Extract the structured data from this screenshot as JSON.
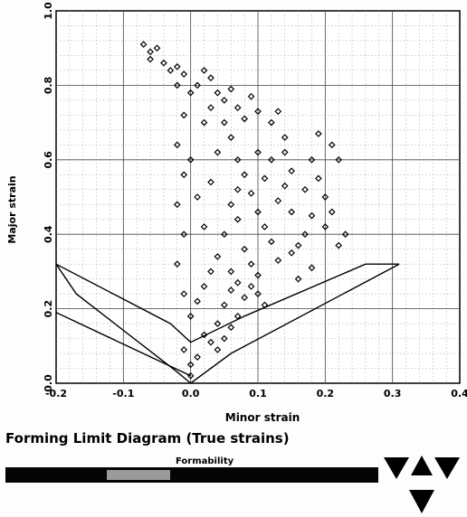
{
  "chart_data": {
    "type": "scatter",
    "title": "Forming Limit Diagram (True strains)",
    "xlabel": "Minor strain",
    "ylabel": "Major strain",
    "xlim": [
      -0.2,
      0.4
    ],
    "ylim": [
      0.0,
      1.0
    ],
    "x_ticks": [
      "-0.2",
      "-0.1",
      "0.0",
      "0.1",
      "0.2",
      "0.3",
      "0.4"
    ],
    "y_ticks": [
      "0.0",
      "0.2",
      "0.4",
      "0.6",
      "0.8",
      "1.0"
    ],
    "grid": true,
    "marker": "open-diamond",
    "color": "#000000",
    "series": [
      {
        "values": [
          [
            -0.07,
            0.91
          ],
          [
            -0.06,
            0.89
          ],
          [
            -0.05,
            0.9
          ],
          [
            -0.06,
            0.87
          ],
          [
            -0.04,
            0.86
          ],
          [
            -0.03,
            0.84
          ],
          [
            -0.02,
            0.85
          ],
          [
            -0.02,
            0.8
          ],
          [
            -0.01,
            0.83
          ],
          [
            0.0,
            0.78
          ],
          [
            0.01,
            0.8
          ],
          [
            0.02,
            0.84
          ],
          [
            0.03,
            0.82
          ],
          [
            0.04,
            0.78
          ],
          [
            0.05,
            0.76
          ],
          [
            0.06,
            0.79
          ],
          [
            0.07,
            0.74
          ],
          [
            0.08,
            0.71
          ],
          [
            0.09,
            0.77
          ],
          [
            0.1,
            0.73
          ],
          [
            0.12,
            0.7
          ],
          [
            0.13,
            0.73
          ],
          [
            0.1,
            0.62
          ],
          [
            0.12,
            0.6
          ],
          [
            0.14,
            0.62
          ],
          [
            0.15,
            0.57
          ],
          [
            0.17,
            0.52
          ],
          [
            0.18,
            0.6
          ],
          [
            0.19,
            0.55
          ],
          [
            0.2,
            0.5
          ],
          [
            0.21,
            0.46
          ],
          [
            0.2,
            0.42
          ],
          [
            0.18,
            0.45
          ],
          [
            0.17,
            0.4
          ],
          [
            0.16,
            0.37
          ],
          [
            0.15,
            0.35
          ],
          [
            0.13,
            0.33
          ],
          [
            0.12,
            0.38
          ],
          [
            0.11,
            0.42
          ],
          [
            0.1,
            0.46
          ],
          [
            0.09,
            0.51
          ],
          [
            0.08,
            0.56
          ],
          [
            0.07,
            0.6
          ],
          [
            0.06,
            0.66
          ],
          [
            0.05,
            0.7
          ],
          [
            0.06,
            0.48
          ],
          [
            0.05,
            0.4
          ],
          [
            0.04,
            0.34
          ],
          [
            0.03,
            0.3
          ],
          [
            0.02,
            0.26
          ],
          [
            0.01,
            0.22
          ],
          [
            0.0,
            0.18
          ],
          [
            -0.01,
            0.24
          ],
          [
            -0.02,
            0.32
          ],
          [
            -0.01,
            0.4
          ],
          [
            -0.02,
            0.48
          ],
          [
            -0.01,
            0.56
          ],
          [
            -0.02,
            0.64
          ],
          [
            -0.01,
            0.72
          ],
          [
            0.0,
            0.6
          ],
          [
            0.01,
            0.5
          ],
          [
            0.02,
            0.42
          ],
          [
            0.03,
            0.54
          ],
          [
            0.04,
            0.62
          ],
          [
            0.02,
            0.7
          ],
          [
            0.03,
            0.74
          ],
          [
            0.06,
            0.25
          ],
          [
            0.07,
            0.27
          ],
          [
            0.08,
            0.23
          ],
          [
            0.09,
            0.26
          ],
          [
            0.1,
            0.24
          ],
          [
            0.11,
            0.21
          ],
          [
            0.07,
            0.18
          ],
          [
            0.06,
            0.15
          ],
          [
            0.05,
            0.12
          ],
          [
            0.04,
            0.09
          ],
          [
            0.03,
            0.11
          ],
          [
            0.02,
            0.13
          ],
          [
            0.01,
            0.07
          ],
          [
            0.0,
            0.05
          ],
          [
            -0.01,
            0.09
          ],
          [
            0.0,
            0.02
          ],
          [
            0.16,
            0.28
          ],
          [
            0.18,
            0.31
          ],
          [
            0.22,
            0.6
          ],
          [
            0.21,
            0.64
          ],
          [
            0.19,
            0.67
          ],
          [
            0.14,
            0.66
          ],
          [
            0.15,
            0.46
          ],
          [
            0.23,
            0.4
          ],
          [
            0.22,
            0.37
          ],
          [
            0.14,
            0.53
          ],
          [
            0.13,
            0.49
          ],
          [
            0.11,
            0.55
          ],
          [
            0.08,
            0.36
          ],
          [
            0.07,
            0.44
          ],
          [
            0.09,
            0.32
          ],
          [
            0.1,
            0.29
          ],
          [
            0.04,
            0.16
          ],
          [
            0.05,
            0.21
          ],
          [
            0.06,
            0.3
          ],
          [
            0.07,
            0.52
          ]
        ]
      }
    ],
    "limit_curves": [
      {
        "points": [
          [
            -0.2,
            0.32
          ],
          [
            -0.03,
            0.16
          ],
          [
            0.0,
            0.11
          ],
          [
            0.08,
            0.18
          ],
          [
            0.26,
            0.32
          ],
          [
            0.31,
            0.32
          ]
        ]
      },
      {
        "points": [
          [
            -0.2,
            0.32
          ],
          [
            -0.17,
            0.24
          ],
          [
            -0.02,
            0.03
          ],
          [
            0.0,
            0.0
          ],
          [
            0.06,
            0.08
          ],
          [
            0.31,
            0.32
          ]
        ]
      },
      {
        "points": [
          [
            -0.2,
            0.19
          ],
          [
            0.0,
            0.02
          ]
        ]
      }
    ]
  },
  "formability": {
    "label": "Formability"
  },
  "logo": {
    "icon": "triangle-logo-icon"
  }
}
